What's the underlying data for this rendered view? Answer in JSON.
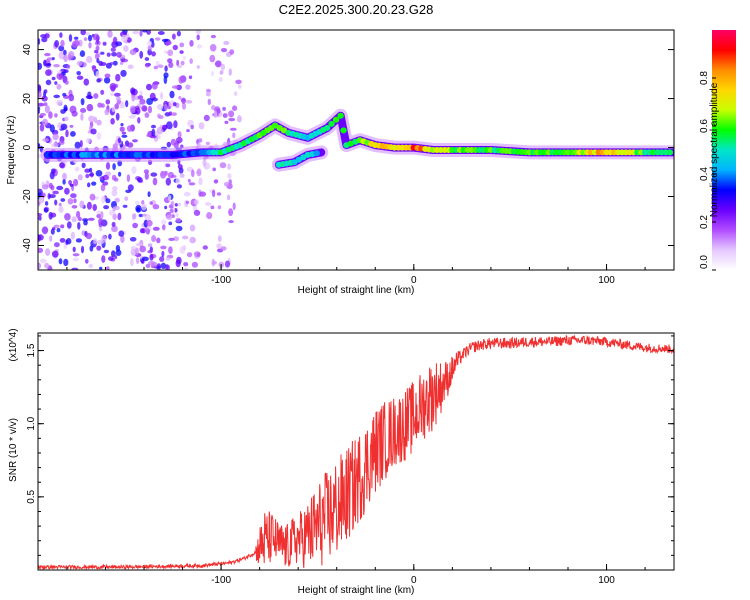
{
  "title": "C2E2.2025.300.20.23.G28",
  "chart_data": [
    {
      "type": "heatmap",
      "title": "C2E2.2025.300.20.23.G28",
      "xlabel": "Height of straight line (km)",
      "ylabel": "Frequency (Hz)",
      "xlim": [
        -195,
        135
      ],
      "ylim": [
        -50,
        48
      ],
      "xticks": [
        -100,
        0,
        100
      ],
      "yticks": [
        -40,
        -20,
        0,
        20,
        40
      ],
      "colorbar": {
        "label": "Normalized spectral amplitude",
        "range": [
          0.0,
          1.0
        ],
        "ticks": [
          "0.0",
          "0.2",
          "0.4",
          "0.6",
          "0.8"
        ],
        "colors": [
          "#ffffff",
          "#e6c8ff",
          "#b04cff",
          "#6a00ff",
          "#0000ff",
          "#00b4ff",
          "#00e6c8",
          "#00ff00",
          "#c8ff00",
          "#ffd700",
          "#ff8c00",
          "#ff0000",
          "#ff0066"
        ]
      },
      "ridge": [
        {
          "x": -190,
          "f": -3,
          "a": 0.35
        },
        {
          "x": -170,
          "f": -3,
          "a": 0.4
        },
        {
          "x": -150,
          "f": -3,
          "a": 0.4
        },
        {
          "x": -125,
          "f": -3,
          "a": 0.35
        },
        {
          "x": -110,
          "f": -2,
          "a": 0.4
        },
        {
          "x": -100,
          "f": -2,
          "a": 0.55
        },
        {
          "x": -90,
          "f": 1,
          "a": 0.55
        },
        {
          "x": -80,
          "f": 5,
          "a": 0.65
        },
        {
          "x": -72,
          "f": 9,
          "a": 0.7
        },
        {
          "x": -65,
          "f": 6,
          "a": 0.55
        },
        {
          "x": -55,
          "f": 4,
          "a": 0.5
        },
        {
          "x": -45,
          "f": 8,
          "a": 0.55
        },
        {
          "x": -38,
          "f": 13,
          "a": 0.6
        },
        {
          "x": -35,
          "f": 1,
          "a": 0.55
        },
        {
          "x": -28,
          "f": 3,
          "a": 0.65
        },
        {
          "x": -20,
          "f": 1,
          "a": 0.75
        },
        {
          "x": -10,
          "f": 0,
          "a": 0.8
        },
        {
          "x": 0,
          "f": 0,
          "a": 0.9
        },
        {
          "x": 10,
          "f": -1,
          "a": 0.75
        },
        {
          "x": 20,
          "f": -1,
          "a": 0.65
        },
        {
          "x": 40,
          "f": -1,
          "a": 0.6
        },
        {
          "x": 60,
          "f": -2,
          "a": 0.6
        },
        {
          "x": 80,
          "f": -2,
          "a": 0.65
        },
        {
          "x": 100,
          "f": -2,
          "a": 0.85
        },
        {
          "x": 120,
          "f": -2,
          "a": 0.6
        },
        {
          "x": 135,
          "f": -2,
          "a": 0.55
        }
      ],
      "ridge_low": [
        {
          "x": -70,
          "f": -7,
          "a": 0.5
        },
        {
          "x": -62,
          "f": -6,
          "a": 0.5
        },
        {
          "x": -55,
          "f": -3,
          "a": 0.5
        },
        {
          "x": -48,
          "f": -2,
          "a": 0.45
        }
      ]
    },
    {
      "type": "line",
      "xlabel": "Height of straight line (km)",
      "ylabel": "SNR (10 * v/v)",
      "y_multiplier": "(x10^4)",
      "xlim": [
        -195,
        135
      ],
      "ylim": [
        0,
        1.62
      ],
      "xticks": [
        -100,
        0,
        100
      ],
      "yticks": [
        0.5,
        1.0,
        1.5
      ],
      "color": "#f03030",
      "series": [
        {
          "name": "SNR",
          "x": [
            -195,
            -150,
            -110,
            -95,
            -88,
            -82,
            -78,
            -74,
            -70,
            -66,
            -62,
            -58,
            -54,
            -50,
            -46,
            -42,
            -38,
            -34,
            -30,
            -26,
            -22,
            -18,
            -14,
            -10,
            -6,
            -2,
            2,
            6,
            10,
            14,
            18,
            22,
            26,
            30,
            35,
            40,
            50,
            60,
            70,
            80,
            90,
            100,
            110,
            120,
            135
          ],
          "y": [
            0.02,
            0.02,
            0.03,
            0.05,
            0.08,
            0.12,
            0.2,
            0.22,
            0.18,
            0.15,
            0.2,
            0.22,
            0.25,
            0.3,
            0.35,
            0.4,
            0.45,
            0.52,
            0.6,
            0.68,
            0.78,
            0.85,
            0.9,
            0.95,
            0.98,
            1.02,
            1.08,
            1.15,
            1.2,
            1.25,
            1.32,
            1.42,
            1.48,
            1.52,
            1.54,
            1.55,
            1.55,
            1.56,
            1.56,
            1.57,
            1.57,
            1.56,
            1.54,
            1.52,
            1.51
          ]
        }
      ],
      "noise_band": [
        {
          "x": -82,
          "amp": 0.06
        },
        {
          "x": -78,
          "amp": 0.22
        },
        {
          "x": -70,
          "amp": 0.15
        },
        {
          "x": -60,
          "amp": 0.18
        },
        {
          "x": -50,
          "amp": 0.3
        },
        {
          "x": -40,
          "amp": 0.35
        },
        {
          "x": -30,
          "amp": 0.32
        },
        {
          "x": -20,
          "amp": 0.3
        },
        {
          "x": -10,
          "amp": 0.25
        },
        {
          "x": 0,
          "amp": 0.25
        },
        {
          "x": 10,
          "amp": 0.25
        },
        {
          "x": 18,
          "amp": 0.12
        },
        {
          "x": 25,
          "amp": 0.04
        },
        {
          "x": 135,
          "amp": 0.03
        }
      ]
    }
  ]
}
